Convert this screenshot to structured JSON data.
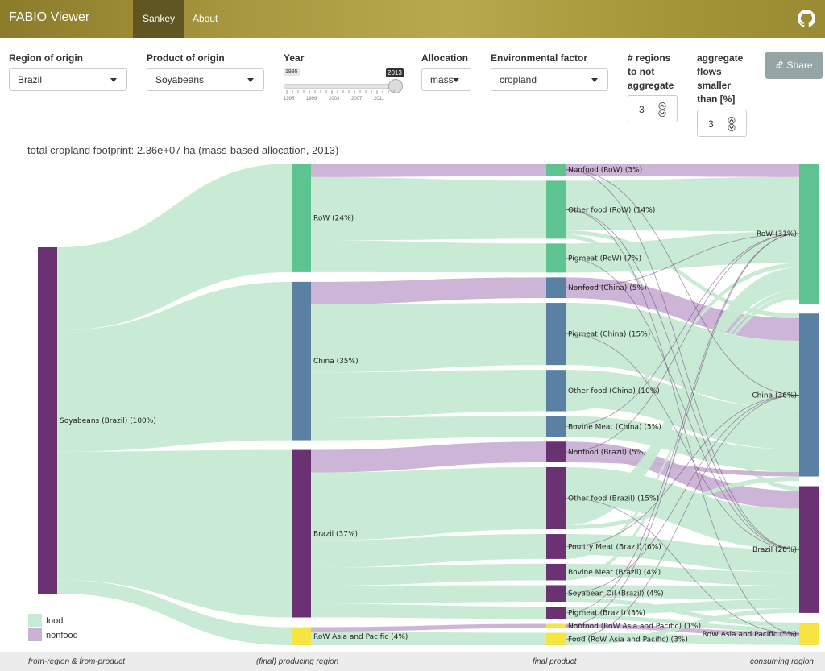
{
  "navbar": {
    "brand": "FABIO Viewer",
    "tabs": [
      {
        "label": "Sankey",
        "active": true
      },
      {
        "label": "About",
        "active": false
      }
    ],
    "github_icon": "github-icon"
  },
  "controls": {
    "region": {
      "label": "Region of origin",
      "value": "Brazil"
    },
    "product": {
      "label": "Product of origin",
      "value": "Soyabeans"
    },
    "year": {
      "label": "Year",
      "min": "1995",
      "max": "2013",
      "value": "2013",
      "ticks": [
        "1995",
        "1999",
        "2003",
        "2007",
        "2011"
      ],
      "fraction": 1.0
    },
    "allocation": {
      "label": "Allocation",
      "value": "mass"
    },
    "env": {
      "label": "Environmental factor",
      "value": "cropland"
    },
    "regions_not_agg": {
      "label_lines": [
        "# regions",
        "to not",
        "aggregate"
      ],
      "value": "3"
    },
    "agg_flows": {
      "label_lines": [
        "aggregate",
        "flows",
        "smaller",
        "than [%]"
      ],
      "value": "3"
    },
    "share": {
      "label": "Share",
      "icon": "link-icon"
    }
  },
  "footprint_text": "total cropland footprint: 2.36e+07 ha (mass-based allocation, 2013)",
  "colors": {
    "food": "#c6ead3",
    "nonfood": "#c9b1d4",
    "brazil": "#6a3173",
    "row": "#5cc391",
    "china": "#5a80a3",
    "rowap": "#f5e442",
    "dark_link": "#6a3173"
  },
  "legend": [
    {
      "label": "food",
      "color": "#c6ead3"
    },
    {
      "label": "nonfood",
      "color": "#c9b1d4"
    }
  ],
  "footer": {
    "col1": "from-region & from-product",
    "col2": "(final) producing region",
    "col3": "final product",
    "col4": "consuming region"
  },
  "chart_data": {
    "type": "sankey",
    "columns": [
      "from-region & from-product",
      "(final) producing region",
      "final product",
      "consuming region"
    ],
    "nodes": [
      {
        "id": "soy",
        "label": "Soyabeans (Brazil) (100%)",
        "col": 0,
        "pct": 100,
        "color": "brazil"
      },
      {
        "id": "p_row",
        "label": "RoW (24%)",
        "col": 1,
        "pct": 24,
        "color": "row"
      },
      {
        "id": "p_china",
        "label": "China (35%)",
        "col": 1,
        "pct": 35,
        "color": "china"
      },
      {
        "id": "p_brazil",
        "label": "Brazil (37%)",
        "col": 1,
        "pct": 37,
        "color": "brazil"
      },
      {
        "id": "p_rowap",
        "label": "RoW Asia and Pacific (4%)",
        "col": 1,
        "pct": 4,
        "color": "rowap"
      },
      {
        "id": "f_nonfood_row",
        "label": "Nonfood (RoW) (3%)",
        "col": 2,
        "pct": 3,
        "color": "row"
      },
      {
        "id": "f_otherfood_row",
        "label": "Other food (RoW) (14%)",
        "col": 2,
        "pct": 14,
        "color": "row"
      },
      {
        "id": "f_pig_row",
        "label": "Pigmeat (RoW) (7%)",
        "col": 2,
        "pct": 7,
        "color": "row"
      },
      {
        "id": "f_nonfood_china",
        "label": "Nonfood (China) (5%)",
        "col": 2,
        "pct": 5,
        "color": "china"
      },
      {
        "id": "f_pig_china",
        "label": "Pigmeat (China) (15%)",
        "col": 2,
        "pct": 15,
        "color": "china"
      },
      {
        "id": "f_otherfood_china",
        "label": "Other food (China) (10%)",
        "col": 2,
        "pct": 10,
        "color": "china"
      },
      {
        "id": "f_bovine_china",
        "label": "Bovine Meat (China) (5%)",
        "col": 2,
        "pct": 5,
        "color": "china"
      },
      {
        "id": "f_nonfood_brazil",
        "label": "Nonfood (Brazil) (5%)",
        "col": 2,
        "pct": 5,
        "color": "brazil"
      },
      {
        "id": "f_otherfood_brazil",
        "label": "Other food (Brazil) (15%)",
        "col": 2,
        "pct": 15,
        "color": "brazil"
      },
      {
        "id": "f_poultry_brazil",
        "label": "Poultry Meat (Brazil) (6%)",
        "col": 2,
        "pct": 6,
        "color": "brazil"
      },
      {
        "id": "f_bovine_brazil",
        "label": "Bovine Meat (Brazil) (4%)",
        "col": 2,
        "pct": 4,
        "color": "brazil"
      },
      {
        "id": "f_soyoil_brazil",
        "label": "Soyabean Oil (Brazil) (4%)",
        "col": 2,
        "pct": 4,
        "color": "brazil"
      },
      {
        "id": "f_pig_brazil",
        "label": "Pigmeat (Brazil) (3%)",
        "col": 2,
        "pct": 3,
        "color": "brazil"
      },
      {
        "id": "f_nonfood_rowap",
        "label": "Nonfood (RoW Asia and Pacific) (1%)",
        "col": 2,
        "pct": 1,
        "color": "rowap"
      },
      {
        "id": "f_food_rowap",
        "label": "Food (RoW Asia and Pacific) (3%)",
        "col": 2,
        "pct": 3,
        "color": "rowap"
      },
      {
        "id": "c_row",
        "label": "RoW (31%)",
        "col": 3,
        "pct": 31,
        "color": "row"
      },
      {
        "id": "c_china",
        "label": "China (36%)",
        "col": 3,
        "pct": 36,
        "color": "china"
      },
      {
        "id": "c_brazil",
        "label": "Brazil (28%)",
        "col": 3,
        "pct": 28,
        "color": "brazil"
      },
      {
        "id": "c_rowap",
        "label": "RoW Asia and Pacific (5%)",
        "col": 3,
        "pct": 5,
        "color": "rowap"
      }
    ],
    "links": [
      {
        "source": "soy",
        "target": "p_row",
        "value": 24,
        "kind": "food"
      },
      {
        "source": "soy",
        "target": "p_china",
        "value": 35,
        "kind": "food"
      },
      {
        "source": "soy",
        "target": "p_brazil",
        "value": 37,
        "kind": "food"
      },
      {
        "source": "soy",
        "target": "p_rowap",
        "value": 4,
        "kind": "food"
      },
      {
        "source": "p_row",
        "target": "f_nonfood_row",
        "value": 3,
        "kind": "nonfood"
      },
      {
        "source": "p_row",
        "target": "f_otherfood_row",
        "value": 14,
        "kind": "food"
      },
      {
        "source": "p_row",
        "target": "f_pig_row",
        "value": 7,
        "kind": "food"
      },
      {
        "source": "p_china",
        "target": "f_nonfood_china",
        "value": 5,
        "kind": "nonfood"
      },
      {
        "source": "p_china",
        "target": "f_pig_china",
        "value": 15,
        "kind": "food"
      },
      {
        "source": "p_china",
        "target": "f_otherfood_china",
        "value": 10,
        "kind": "food"
      },
      {
        "source": "p_china",
        "target": "f_bovine_china",
        "value": 5,
        "kind": "food"
      },
      {
        "source": "p_brazil",
        "target": "f_nonfood_brazil",
        "value": 5,
        "kind": "nonfood"
      },
      {
        "source": "p_brazil",
        "target": "f_otherfood_brazil",
        "value": 15,
        "kind": "food"
      },
      {
        "source": "p_brazil",
        "target": "f_poultry_brazil",
        "value": 6,
        "kind": "food"
      },
      {
        "source": "p_brazil",
        "target": "f_bovine_brazil",
        "value": 4,
        "kind": "food"
      },
      {
        "source": "p_brazil",
        "target": "f_soyoil_brazil",
        "value": 4,
        "kind": "food"
      },
      {
        "source": "p_brazil",
        "target": "f_pig_brazil",
        "value": 3,
        "kind": "food"
      },
      {
        "source": "p_rowap",
        "target": "f_nonfood_rowap",
        "value": 1,
        "kind": "nonfood"
      },
      {
        "source": "p_rowap",
        "target": "f_food_rowap",
        "value": 3,
        "kind": "food"
      },
      {
        "source": "f_nonfood_row",
        "target": "c_row",
        "value": 3,
        "kind": "nonfood"
      },
      {
        "source": "f_otherfood_row",
        "target": "c_row",
        "value": 12,
        "kind": "food"
      },
      {
        "source": "f_otherfood_row",
        "target": "c_china",
        "value": 1,
        "kind": "food"
      },
      {
        "source": "f_otherfood_row",
        "target": "c_brazil",
        "value": 1,
        "kind": "food"
      },
      {
        "source": "f_pig_row",
        "target": "c_row",
        "value": 7,
        "kind": "food"
      },
      {
        "source": "f_nonfood_china",
        "target": "c_china",
        "value": 5,
        "kind": "nonfood"
      },
      {
        "source": "f_pig_china",
        "target": "c_china",
        "value": 15,
        "kind": "food"
      },
      {
        "source": "f_otherfood_china",
        "target": "c_china",
        "value": 9,
        "kind": "food"
      },
      {
        "source": "f_otherfood_china",
        "target": "c_row",
        "value": 1,
        "kind": "food"
      },
      {
        "source": "f_bovine_china",
        "target": "c_china",
        "value": 5,
        "kind": "food"
      },
      {
        "source": "f_nonfood_brazil",
        "target": "c_brazil",
        "value": 4,
        "kind": "nonfood"
      },
      {
        "source": "f_nonfood_brazil",
        "target": "c_china",
        "value": 1,
        "kind": "nonfood"
      },
      {
        "source": "f_otherfood_brazil",
        "target": "c_brazil",
        "value": 9,
        "kind": "food"
      },
      {
        "source": "f_otherfood_brazil",
        "target": "c_row",
        "value": 5,
        "kind": "food"
      },
      {
        "source": "f_otherfood_brazil",
        "target": "c_china",
        "value": 1,
        "kind": "food"
      },
      {
        "source": "f_poultry_brazil",
        "target": "c_brazil",
        "value": 5,
        "kind": "food"
      },
      {
        "source": "f_poultry_brazil",
        "target": "c_row",
        "value": 1,
        "kind": "food"
      },
      {
        "source": "f_bovine_brazil",
        "target": "c_brazil",
        "value": 3,
        "kind": "food"
      },
      {
        "source": "f_bovine_brazil",
        "target": "c_row",
        "value": 1,
        "kind": "food"
      },
      {
        "source": "f_soyoil_brazil",
        "target": "c_brazil",
        "value": 3,
        "kind": "food"
      },
      {
        "source": "f_soyoil_brazil",
        "target": "c_rowap",
        "value": 1,
        "kind": "food"
      },
      {
        "source": "f_pig_brazil",
        "target": "c_brazil",
        "value": 2,
        "kind": "food"
      },
      {
        "source": "f_pig_brazil",
        "target": "c_rowap",
        "value": 1,
        "kind": "food"
      },
      {
        "source": "f_nonfood_rowap",
        "target": "c_rowap",
        "value": 1,
        "kind": "nonfood"
      },
      {
        "source": "f_food_rowap",
        "target": "c_rowap",
        "value": 2,
        "kind": "food"
      },
      {
        "source": "f_food_rowap",
        "target": "c_brazil",
        "value": 1,
        "kind": "food"
      }
    ]
  }
}
